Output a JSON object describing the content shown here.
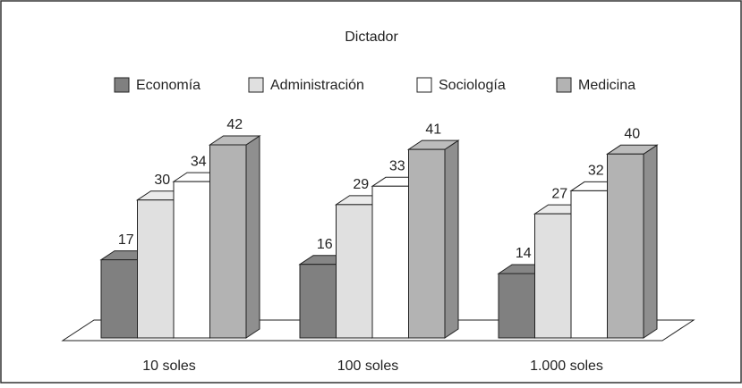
{
  "chart_data": {
    "type": "bar3d",
    "title": "Dictador",
    "categories": [
      "10 soles",
      "100 soles",
      "1.000 soles"
    ],
    "series": [
      {
        "name": "Economía",
        "color": "#808080",
        "values": [
          17,
          16,
          14
        ]
      },
      {
        "name": "Administración",
        "color": "#e0e0e0",
        "values": [
          30,
          29,
          27
        ]
      },
      {
        "name": "Sociología",
        "color": "#ffffff",
        "values": [
          34,
          33,
          32
        ]
      },
      {
        "name": "Medicina",
        "color": "#b3b3b3",
        "values": [
          42,
          41,
          40
        ]
      }
    ]
  }
}
